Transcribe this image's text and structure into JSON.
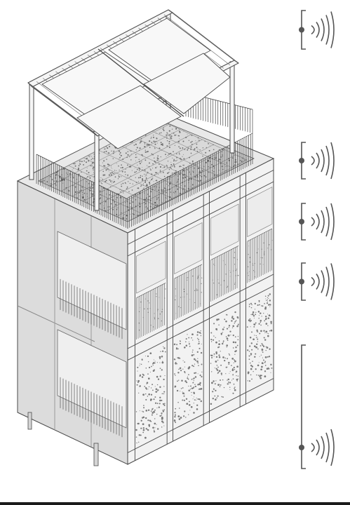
{
  "figure": {
    "subject": "isometric-building-section",
    "colors": {
      "line": "#4a4a4a",
      "fill_light": "#f1f1f1",
      "fill_mid": "#dadada",
      "fill_dark": "#c2c2c2",
      "plant": "#6f6f6f",
      "indicator": "#555555"
    }
  },
  "indicators": {
    "icons": [
      "bracket-icon",
      "sound-wave-icon"
    ],
    "count": 5
  }
}
